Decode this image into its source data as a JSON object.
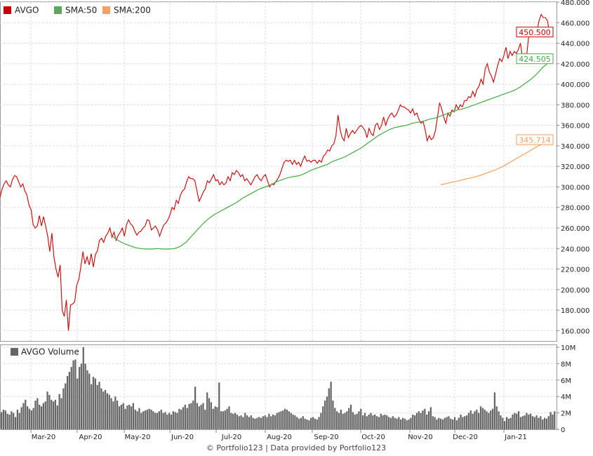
{
  "chart_data": {
    "type": "line",
    "ticker": "AVGO",
    "price_panel": {
      "ylim": [
        150,
        480
      ],
      "yticks": [
        "160.000",
        "180.000",
        "200.000",
        "220.000",
        "240.000",
        "260.000",
        "280.000",
        "300.000",
        "320.000",
        "340.000",
        "360.000",
        "380.000",
        "400.000",
        "420.000",
        "440.000",
        "460.000",
        "480.000"
      ],
      "grid": true,
      "legend_position": "top-left",
      "series": [
        {
          "name": "AVGO",
          "color": "#cc0000",
          "last_label": "450.500",
          "values": [
            290,
            298,
            303,
            306,
            302,
            300,
            307,
            311,
            310,
            305,
            300,
            303,
            296,
            292,
            282,
            278,
            263,
            260,
            262,
            272,
            262,
            271,
            262,
            252,
            237,
            255,
            232,
            220,
            212,
            224,
            180,
            174,
            190,
            160,
            185,
            186,
            188,
            204,
            210,
            222,
            237,
            225,
            232,
            224,
            235,
            222,
            234,
            238,
            248,
            250,
            246,
            252,
            255,
            260,
            251,
            256,
            248,
            253,
            256,
            260,
            252,
            263,
            268,
            264,
            262,
            257,
            253,
            256,
            257,
            260,
            262,
            268,
            267,
            258,
            260,
            262,
            258,
            252,
            258,
            263,
            265,
            268,
            273,
            280,
            278,
            287,
            284,
            292,
            296,
            298,
            305,
            310,
            308,
            308,
            306,
            296,
            286,
            290,
            295,
            298,
            306,
            304,
            308,
            312,
            306,
            307,
            302,
            305,
            302,
            304,
            310,
            306,
            314,
            312,
            316,
            314,
            310,
            312,
            306,
            308,
            305,
            302,
            306,
            310,
            312,
            308,
            306,
            310,
            312,
            306,
            300,
            303,
            302,
            305,
            308,
            312,
            318,
            324,
            326,
            325,
            326,
            322,
            326,
            322,
            324,
            320,
            326,
            330,
            325,
            326,
            324,
            326,
            326,
            323,
            326,
            324,
            330,
            332,
            336,
            335,
            340,
            342,
            350,
            370,
            356,
            348,
            345,
            357,
            348,
            352,
            355,
            352,
            355,
            358,
            360,
            358,
            355,
            348,
            357,
            352,
            350,
            360,
            362,
            356,
            360,
            368,
            360,
            366,
            370,
            372,
            368,
            370,
            374,
            380,
            378,
            378,
            376,
            375,
            372,
            376,
            370,
            372,
            366,
            362,
            364,
            356,
            345,
            350,
            346,
            348,
            355,
            368,
            382,
            376,
            368,
            362,
            372,
            369,
            375,
            373,
            380,
            376,
            380,
            378,
            384,
            384,
            388,
            387,
            393,
            388,
            395,
            398,
            405,
            400,
            415,
            420,
            412,
            408,
            402,
            410,
            418,
            425,
            422,
            428,
            436,
            425,
            432,
            428,
            432,
            430,
            434,
            440,
            425,
            430,
            428,
            448,
            450,
            448,
            450,
            452,
            462,
            468,
            465,
            465,
            462,
            450.5
          ],
          "x_start": 0,
          "x_end": 783
        },
        {
          "name": "SMA:50",
          "color": "#44aa44",
          "last_label": "424.505",
          "values": [
            252,
            248,
            245,
            243,
            241,
            240,
            239.5,
            239.5,
            240,
            239.5,
            239.5,
            240,
            242,
            246,
            252,
            258,
            264,
            269,
            273,
            276,
            279,
            282,
            285,
            289,
            292,
            295,
            298,
            300,
            302,
            305,
            307,
            309,
            310,
            311,
            313,
            316,
            318,
            320,
            322,
            325,
            327,
            329,
            332,
            335,
            338,
            342,
            346,
            350,
            353,
            356,
            358,
            359,
            360,
            362,
            363,
            364,
            366,
            367,
            369,
            371,
            373,
            375,
            376,
            378,
            380,
            382,
            384,
            386,
            388,
            390,
            392,
            394,
            397,
            401,
            405,
            410,
            416,
            421
          ],
          "x_start": 160,
          "x_end": 781
        },
        {
          "name": "SMA:200",
          "color": "#f4a060",
          "last_label": "345.714",
          "values": [
            302,
            304,
            306,
            308,
            310,
            313,
            316,
            320,
            325,
            330,
            335,
            340,
            344
          ],
          "x_start": 628,
          "x_end": 780
        }
      ]
    },
    "volume_panel": {
      "legend": "AVGO Volume",
      "ylim": [
        0,
        10
      ],
      "yticks": [
        "0",
        "2M",
        "4M",
        "6M",
        "8M",
        "10M"
      ],
      "values": [
        2.1,
        2.4,
        2.3,
        1.9,
        1.8,
        2.2,
        2.0,
        1.5,
        2.4,
        2.0,
        2.7,
        3.2,
        3.6,
        2.8,
        2.5,
        2.3,
        2.6,
        3.5,
        3.8,
        3.0,
        2.8,
        3.2,
        3.4,
        4.6,
        4.2,
        3.6,
        3.4,
        3.6,
        2.9,
        4.3,
        3.8,
        5.0,
        5.6,
        6.5,
        7.0,
        7.6,
        8.4,
        8.5,
        6.2,
        7.6,
        8.0,
        10.0,
        8.0,
        7.2,
        6.8,
        5.5,
        6.4,
        6.2,
        5.4,
        5.8,
        5.0,
        4.6,
        4.8,
        4.4,
        4.2,
        3.8,
        3.4,
        4.0,
        3.5,
        2.8,
        3.0,
        3.2,
        2.5,
        2.9,
        3.0,
        2.8,
        3.2,
        2.4,
        2.2,
        2.6,
        2.0,
        2.2,
        2.3,
        2.4,
        2.5,
        2.4,
        2.2,
        2.0,
        2.0,
        2.2,
        2.4,
        2.0,
        2.1,
        1.8,
        2.0,
        1.8,
        2.2,
        2.1,
        2.0,
        2.5,
        2.4,
        2.7,
        3.0,
        2.6,
        3.1,
        3.2,
        3.5,
        5.2,
        3.2,
        2.8,
        3.0,
        3.2,
        2.4,
        4.5,
        3.8,
        3.3,
        2.5,
        2.8,
        2.7,
        5.7,
        2.2,
        2.2,
        2.3,
        2.5,
        2.8,
        2.0,
        1.9,
        2.0,
        1.8,
        1.6,
        1.7,
        1.5,
        2.0,
        1.7,
        1.5,
        1.7,
        1.4,
        1.3,
        1.4,
        1.5,
        1.4,
        1.6,
        1.7,
        1.5,
        1.9,
        1.6,
        1.8,
        1.7,
        2.0,
        2.1,
        2.2,
        2.3,
        2.5,
        2.4,
        2.2,
        2.0,
        1.8,
        1.7,
        1.5,
        1.3,
        1.4,
        1.6,
        1.3,
        1.2,
        1.1,
        1.4,
        1.5,
        1.3,
        1.2,
        1.5,
        2.0,
        2.8,
        3.5,
        4.0,
        5.0,
        5.8,
        3.5,
        2.6,
        2.2,
        2.0,
        2.4,
        1.9,
        2.0,
        2.2,
        2.6,
        3.0,
        2.1,
        1.8,
        1.9,
        2.2,
        2.5,
        1.7,
        2.0,
        1.6,
        1.8,
        2.0,
        1.7,
        1.8,
        1.6,
        1.5,
        1.9,
        1.7,
        1.8,
        1.7,
        1.5,
        1.4,
        1.6,
        1.4,
        1.3,
        1.5,
        1.2,
        1.4,
        1.3,
        1.1,
        1.2,
        1.4,
        1.8,
        1.7,
        2.0,
        2.2,
        2.0,
        2.3,
        2.5,
        1.8,
        2.2,
        2.7,
        1.6,
        1.5,
        1.2,
        1.4,
        1.3,
        1.2,
        1.4,
        1.5,
        1.6,
        1.3,
        1.2,
        1.5,
        1.1,
        1.4,
        1.8,
        1.5,
        1.6,
        1.7,
        2.0,
        2.3,
        1.9,
        2.2,
        2.4,
        2.0,
        2.8,
        2.6,
        2.4,
        2.2,
        2.0,
        2.3,
        2.5,
        4.5,
        2.8,
        2.2,
        1.7,
        1.4,
        1.0,
        1.5,
        1.3,
        1.4,
        1.8,
        2.0,
        1.9,
        2.2,
        1.5,
        1.6,
        1.7,
        2.0,
        1.8,
        1.9,
        1.6,
        1.5,
        1.7,
        1.4,
        1.6,
        1.2,
        1.4,
        1.3,
        1.6,
        2.1,
        1.8,
        2.2
      ]
    },
    "x_axis": {
      "tick_labels": [
        "Mar-20",
        "Apr-20",
        "May-20",
        "Jun-20",
        "Jul-20",
        "Aug-20",
        "Sep-20",
        "Oct-20",
        "Nov-20",
        "Dec-20",
        "Jan-21"
      ]
    }
  },
  "footer": {
    "credit": "© Portfolio123 | Data provided by Portfolio123"
  },
  "colors": {
    "price": "#cc0000",
    "sma50": "#44aa44",
    "sma200": "#f4a060",
    "volume": "#666666",
    "grid": "#dcdcdc",
    "frame": "#999999"
  }
}
